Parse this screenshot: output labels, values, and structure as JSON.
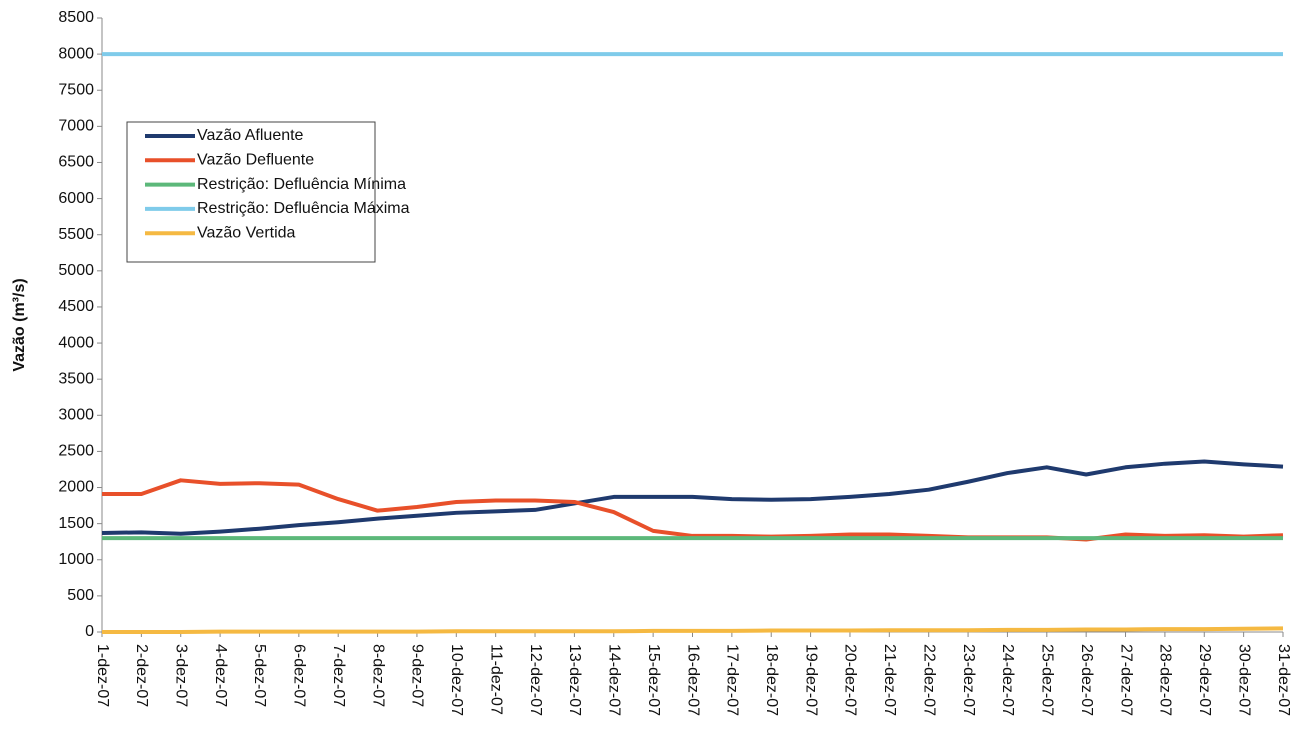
{
  "chart_data": {
    "type": "line",
    "ylabel": "Vazão (m³/s)",
    "categories": [
      "1-dez-07",
      "2-dez-07",
      "3-dez-07",
      "4-dez-07",
      "5-dez-07",
      "6-dez-07",
      "7-dez-07",
      "8-dez-07",
      "9-dez-07",
      "10-dez-07",
      "11-dez-07",
      "12-dez-07",
      "13-dez-07",
      "14-dez-07",
      "15-dez-07",
      "16-dez-07",
      "17-dez-07",
      "18-dez-07",
      "19-dez-07",
      "20-dez-07",
      "21-dez-07",
      "22-dez-07",
      "23-dez-07",
      "24-dez-07",
      "25-dez-07",
      "26-dez-07",
      "27-dez-07",
      "28-dez-07",
      "29-dez-07",
      "30-dez-07",
      "31-dez-07"
    ],
    "series": [
      {
        "name": "Vazão Afluente",
        "color": "#1f3a6e",
        "values": [
          1370,
          1380,
          1360,
          1390,
          1430,
          1480,
          1520,
          1570,
          1610,
          1650,
          1670,
          1690,
          1780,
          1870,
          1870,
          1870,
          1840,
          1830,
          1840,
          1870,
          1910,
          1970,
          2080,
          2200,
          2280,
          2180,
          2280,
          2330,
          2360,
          2320,
          2290
        ]
      },
      {
        "name": "Vazão Defluente",
        "color": "#e8502a",
        "values": [
          1910,
          1910,
          2100,
          2050,
          2060,
          2040,
          1840,
          1680,
          1730,
          1800,
          1820,
          1820,
          1800,
          1660,
          1400,
          1330,
          1330,
          1320,
          1330,
          1350,
          1350,
          1330,
          1310,
          1310,
          1310,
          1280,
          1350,
          1330,
          1340,
          1320,
          1340
        ]
      },
      {
        "name": "Restrição: Defluência Mínima",
        "color": "#5cb87a",
        "values": [
          1300,
          1300,
          1300,
          1300,
          1300,
          1300,
          1300,
          1300,
          1300,
          1300,
          1300,
          1300,
          1300,
          1300,
          1300,
          1300,
          1300,
          1300,
          1300,
          1300,
          1300,
          1300,
          1300,
          1300,
          1300,
          1300,
          1300,
          1300,
          1300,
          1300,
          1300
        ]
      },
      {
        "name": "Restrição: Defluência Máxima",
        "color": "#7fcbea",
        "values": [
          8000,
          8000,
          8000,
          8000,
          8000,
          8000,
          8000,
          8000,
          8000,
          8000,
          8000,
          8000,
          8000,
          8000,
          8000,
          8000,
          8000,
          8000,
          8000,
          8000,
          8000,
          8000,
          8000,
          8000,
          8000,
          8000,
          8000,
          8000,
          8000,
          8000,
          8000
        ]
      },
      {
        "name": "Vazão Vertida",
        "color": "#f5b942",
        "values": [
          0,
          0,
          0,
          5,
          5,
          5,
          5,
          5,
          5,
          10,
          10,
          10,
          10,
          10,
          15,
          15,
          15,
          20,
          20,
          20,
          25,
          25,
          25,
          30,
          30,
          35,
          35,
          40,
          40,
          45,
          50
        ]
      }
    ],
    "ylim": [
      0,
      8500
    ],
    "yticks": [
      0,
      500,
      1000,
      1500,
      2000,
      2500,
      3000,
      3500,
      4000,
      4500,
      5000,
      5500,
      6000,
      6500,
      7000,
      7500,
      8000,
      8500
    ],
    "grid": false,
    "legend": "upper left"
  }
}
